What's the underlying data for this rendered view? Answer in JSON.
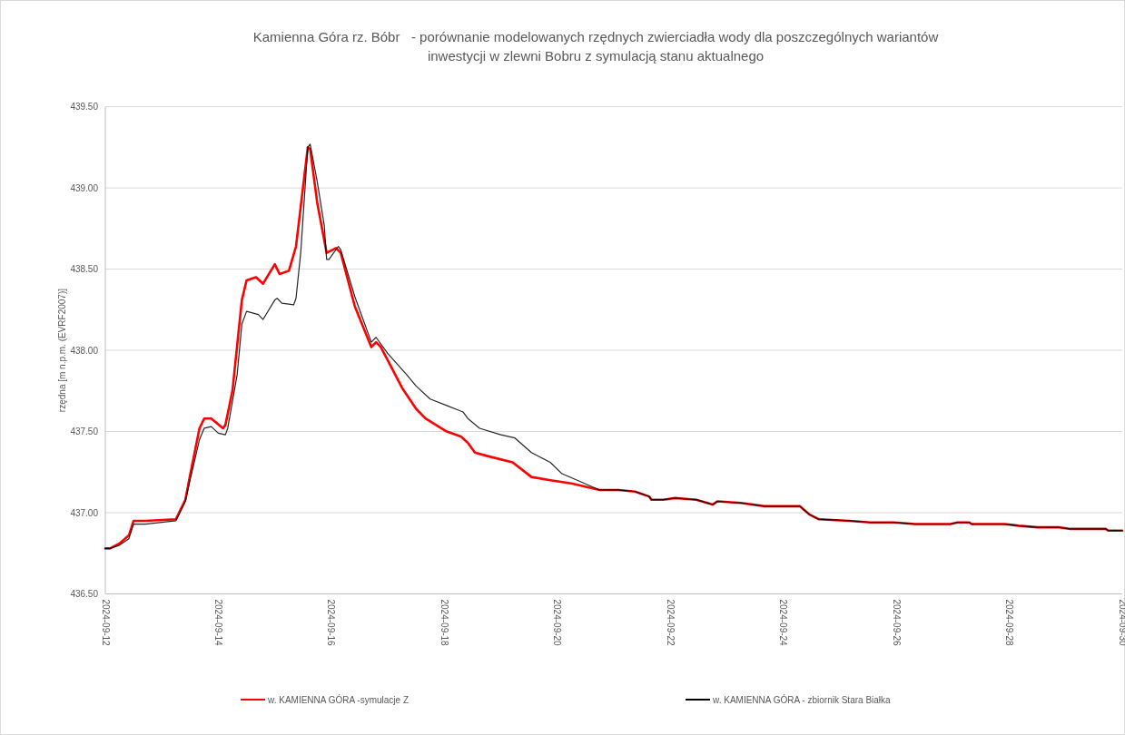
{
  "chart_data": {
    "type": "line",
    "title": "Kamienna Góra rz. Bóbr   - porównanie modelowanych rzędnych zwierciadła wody dla poszczególnych wariantów inwestycji w zlewni Bobru z symulacją stanu aktualnego",
    "ylabel": "rzędna [m n.p.m. (EVRF2007)]",
    "xlim": [
      "2024-09-12",
      "2024-09-30"
    ],
    "xticks": [
      "2024-09-12",
      "2024-09-14",
      "2024-09-16",
      "2024-09-18",
      "2024-09-20",
      "2024-09-22",
      "2024-09-24",
      "2024-09-26",
      "2024-09-28",
      "2024-09-30"
    ],
    "ylim": [
      436.5,
      439.5
    ],
    "yticks": [
      {
        "value": 436.5,
        "label": "436.50"
      },
      {
        "value": 437,
        "label": "437.00"
      },
      {
        "value": 437.5,
        "label": "437.50"
      },
      {
        "value": 438,
        "label": "438.00"
      },
      {
        "value": 438.5,
        "label": "438.50"
      },
      {
        "value": 439,
        "label": "439.00"
      },
      {
        "value": 439.5,
        "label": "439.50"
      }
    ],
    "grid": "y",
    "legend": "bottom",
    "marker": "none",
    "line_style": "solid",
    "series": [
      {
        "name": "w. KAMIENNA GÓRA -symulacje Z",
        "color": "#ff0000",
        "x": [
          "2024-09-12T00:00",
          "2024-09-12T02:00",
          "2024-09-12T06:00",
          "2024-09-12T10:00",
          "2024-09-12T12:00",
          "2024-09-12T17:00",
          "2024-09-13T06:00",
          "2024-09-13T10:00",
          "2024-09-13T12:00",
          "2024-09-13T16:00",
          "2024-09-13T18:00",
          "2024-09-13T21:00",
          "2024-09-14T02:00",
          "2024-09-14T03:00",
          "2024-09-14T06:00",
          "2024-09-14T10:00",
          "2024-09-14T12:00",
          "2024-09-14T16:00",
          "2024-09-14T19:00",
          "2024-09-15T00:00",
          "2024-09-15T02:00",
          "2024-09-15T06:00",
          "2024-09-15T09:00",
          "2024-09-15T14:00",
          "2024-09-15T15:00",
          "2024-09-15T18:00",
          "2024-09-15T22:00",
          "2024-09-16T02:00",
          "2024-09-16T04:00",
          "2024-09-16T10:00",
          "2024-09-16T17:00",
          "2024-09-16T19:00",
          "2024-09-16T21:00",
          "2024-09-17T01:00",
          "2024-09-17T06:00",
          "2024-09-17T12:00",
          "2024-09-17T16:00",
          "2024-09-18T01:00",
          "2024-09-18T07:00",
          "2024-09-18T10:00",
          "2024-09-18T13:00",
          "2024-09-18T18:00",
          "2024-09-19T05:00",
          "2024-09-19T13:00",
          "2024-09-19T21:00",
          "2024-09-20T06:00",
          "2024-09-20T18:00",
          "2024-09-21T02:00",
          "2024-09-21T09:00",
          "2024-09-21T15:00",
          "2024-09-21T16:00",
          "2024-09-21T21:00",
          "2024-09-22T02:00",
          "2024-09-22T11:00",
          "2024-09-22T18:00",
          "2024-09-22T20:00",
          "2024-09-23T06:00",
          "2024-09-23T16:00",
          "2024-09-24T07:00",
          "2024-09-24T11:00",
          "2024-09-24T15:00",
          "2024-09-25T04:00",
          "2024-09-25T13:00",
          "2024-09-25T23:00",
          "2024-09-26T08:00",
          "2024-09-26T23:00",
          "2024-09-27T02:00",
          "2024-09-27T07:00",
          "2024-09-27T08:00",
          "2024-09-27T22:00",
          "2024-09-28T04:00",
          "2024-09-28T12:00",
          "2024-09-28T21:00",
          "2024-09-29T02:00",
          "2024-09-29T17:00",
          "2024-09-29T18:00",
          "2024-09-30T00:00"
        ],
        "values": [
          436.78,
          436.78,
          436.81,
          436.86,
          436.95,
          436.95,
          436.96,
          437.08,
          437.23,
          437.52,
          437.58,
          437.58,
          437.52,
          437.54,
          437.75,
          438.31,
          438.43,
          438.45,
          438.41,
          438.53,
          438.47,
          438.49,
          438.64,
          439.25,
          439.24,
          438.91,
          438.6,
          438.63,
          438.6,
          438.27,
          438.02,
          438.05,
          438.02,
          437.91,
          437.77,
          437.64,
          437.58,
          437.5,
          437.47,
          437.43,
          437.37,
          437.35,
          437.31,
          437.22,
          437.2,
          437.18,
          437.14,
          437.14,
          437.13,
          437.1,
          437.08,
          437.08,
          437.09,
          437.08,
          437.05,
          437.07,
          437.06,
          437.04,
          437.04,
          436.99,
          436.96,
          436.95,
          436.94,
          436.94,
          436.93,
          436.93,
          436.94,
          436.94,
          436.93,
          436.93,
          436.92,
          436.91,
          436.91,
          436.9,
          436.9,
          436.89,
          436.89
        ]
      },
      {
        "name": "w. KAMIENNA GÓRA - zbiornik Stara Białka",
        "color": "#000000",
        "x": [
          "2024-09-12T00:00",
          "2024-09-12T02:00",
          "2024-09-12T06:00",
          "2024-09-12T10:00",
          "2024-09-12T12:00",
          "2024-09-12T17:00",
          "2024-09-13T06:00",
          "2024-09-13T10:00",
          "2024-09-13T12:00",
          "2024-09-13T16:00",
          "2024-09-13T18:00",
          "2024-09-13T21:00",
          "2024-09-14T00:00",
          "2024-09-14T03:00",
          "2024-09-14T04:00",
          "2024-09-14T08:00",
          "2024-09-14T10:00",
          "2024-09-14T12:00",
          "2024-09-14T17:00",
          "2024-09-14T19:00",
          "2024-09-15T00:00",
          "2024-09-15T01:00",
          "2024-09-15T03:00",
          "2024-09-15T08:00",
          "2024-09-15T09:00",
          "2024-09-15T11:00",
          "2024-09-15T14:00",
          "2024-09-15T15:00",
          "2024-09-15T18:00",
          "2024-09-15T21:00",
          "2024-09-15T22:00",
          "2024-09-15T23:00",
          "2024-09-16T03:00",
          "2024-09-16T04:00",
          "2024-09-16T10:00",
          "2024-09-16T17:00",
          "2024-09-16T19:00",
          "2024-09-17T00:00",
          "2024-09-17T08:00",
          "2024-09-17T12:00",
          "2024-09-17T18:00",
          "2024-09-18T01:00",
          "2024-09-18T08:00",
          "2024-09-18T10:00",
          "2024-09-18T15:00",
          "2024-09-19T00:00",
          "2024-09-19T06:00",
          "2024-09-19T13:00",
          "2024-09-19T21:00",
          "2024-09-20T02:00",
          "2024-09-20T10:00",
          "2024-09-20T18:00",
          "2024-09-21T02:00",
          "2024-09-21T09:00",
          "2024-09-21T15:00",
          "2024-09-21T16:00",
          "2024-09-21T21:00",
          "2024-09-22T02:00",
          "2024-09-22T11:00",
          "2024-09-22T18:00",
          "2024-09-22T20:00",
          "2024-09-23T06:00",
          "2024-09-23T16:00",
          "2024-09-24T07:00",
          "2024-09-24T11:00",
          "2024-09-24T15:00",
          "2024-09-25T04:00",
          "2024-09-25T13:00",
          "2024-09-25T23:00",
          "2024-09-26T08:00",
          "2024-09-26T23:00",
          "2024-09-27T02:00",
          "2024-09-27T07:00",
          "2024-09-27T08:00",
          "2024-09-27T22:00",
          "2024-09-28T04:00",
          "2024-09-28T12:00",
          "2024-09-28T21:00",
          "2024-09-29T02:00",
          "2024-09-29T17:00",
          "2024-09-29T18:00",
          "2024-09-30T00:00"
        ],
        "values": [
          436.78,
          436.78,
          436.8,
          436.84,
          436.93,
          436.93,
          436.95,
          437.07,
          437.2,
          437.45,
          437.52,
          437.53,
          437.49,
          437.48,
          437.52,
          437.85,
          438.16,
          438.24,
          438.22,
          438.19,
          438.31,
          438.32,
          438.29,
          438.28,
          438.32,
          438.6,
          439.25,
          439.27,
          439.04,
          438.77,
          438.56,
          438.56,
          438.64,
          438.62,
          438.33,
          438.05,
          438.08,
          437.98,
          437.85,
          437.78,
          437.7,
          437.66,
          437.62,
          437.58,
          437.52,
          437.48,
          437.46,
          437.37,
          437.31,
          437.24,
          437.19,
          437.14,
          437.14,
          437.13,
          437.1,
          437.08,
          437.08,
          437.09,
          437.08,
          437.05,
          437.07,
          437.06,
          437.04,
          437.04,
          436.99,
          436.96,
          436.95,
          436.94,
          436.94,
          436.93,
          436.93,
          436.94,
          436.94,
          436.93,
          436.93,
          436.92,
          436.91,
          436.91,
          436.9,
          436.9,
          436.89,
          436.89
        ]
      }
    ]
  }
}
